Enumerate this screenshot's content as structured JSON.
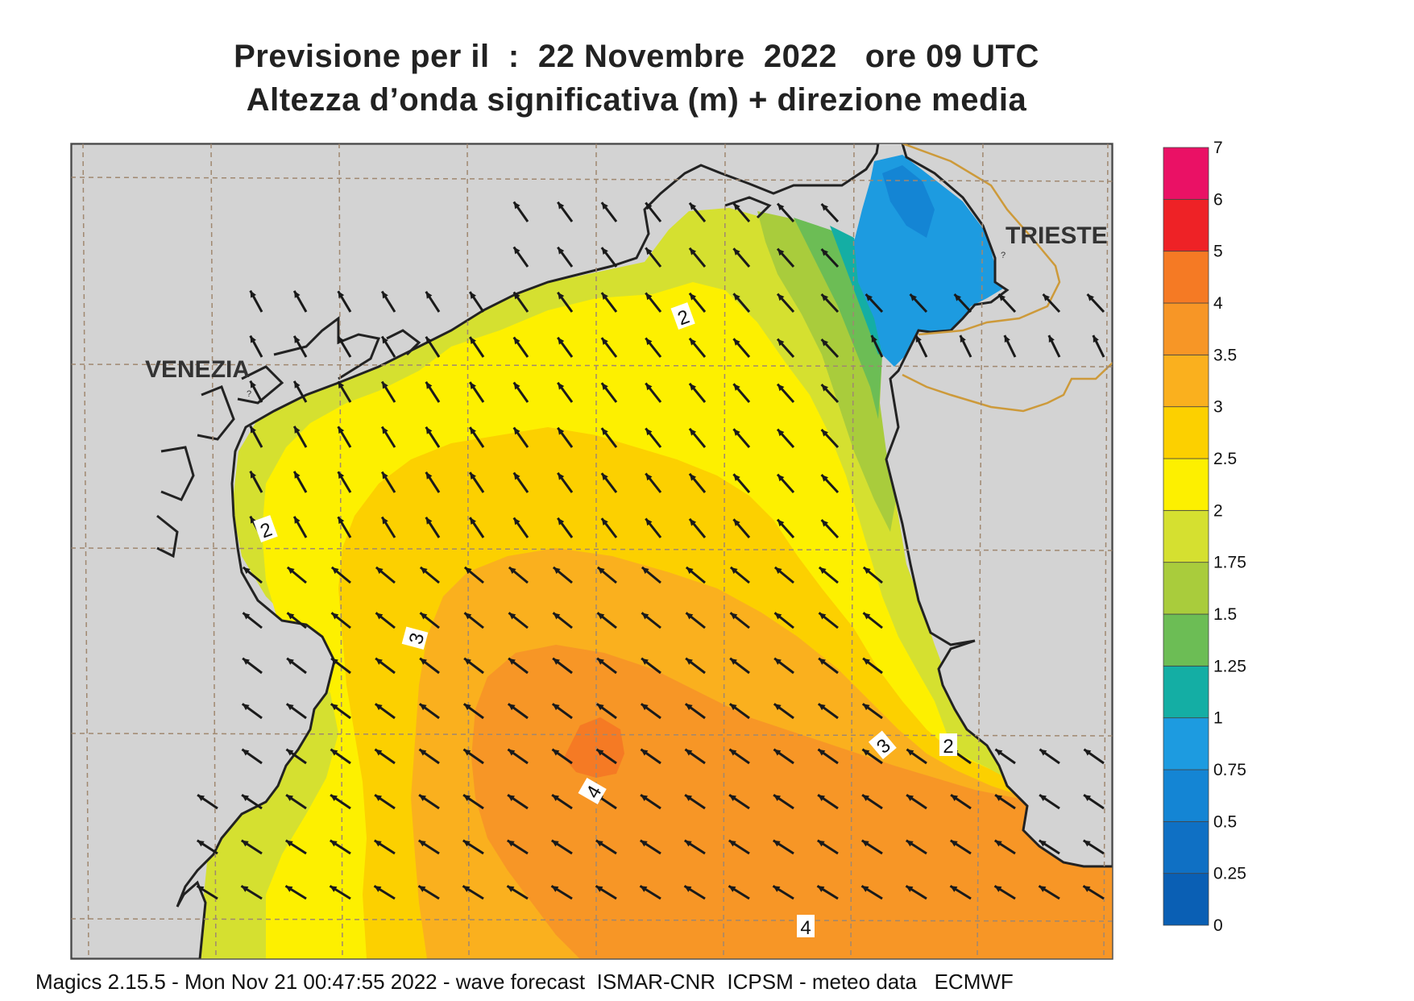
{
  "title": {
    "line1": "Previsione per il  :  22 Novembre  2022   ore 09 UTC",
    "line2": "Altezza d’onda significativa (m) + direzione media"
  },
  "cities": {
    "venezia": "VENEZIA",
    "trieste": "TRIESTE"
  },
  "contour_labels": [
    "2",
    "2",
    "3",
    "3",
    "2",
    "4",
    "4"
  ],
  "colorbar": {
    "levels": [
      "0",
      "0.25",
      "0.5",
      "0.75",
      "1",
      "1.25",
      "1.5",
      "1.75",
      "2",
      "2.5",
      "3",
      "3.5",
      "4",
      "5",
      "6",
      "7"
    ],
    "colors": [
      "#0a5fb4",
      "#0f70c4",
      "#1485d4",
      "#1d9be0",
      "#14aea4",
      "#6cbd55",
      "#a9cc3c",
      "#d5e030",
      "#fdf000",
      "#fcd000",
      "#fab01e",
      "#f79626",
      "#f57a24",
      "#ee2226",
      "#ea1165"
    ]
  },
  "colors": {
    "land": "#d3d3d3",
    "coast": "#222222",
    "grid": "#a08870",
    "border": "#cd9a3a",
    "arrow": "#1a1a1a"
  },
  "footer": "Magics 2.15.5 - Mon Nov 21 00:47:55 2022 - wave forecast  ISMAR-CNR  ICPSM - meteo data   ECMWF"
}
